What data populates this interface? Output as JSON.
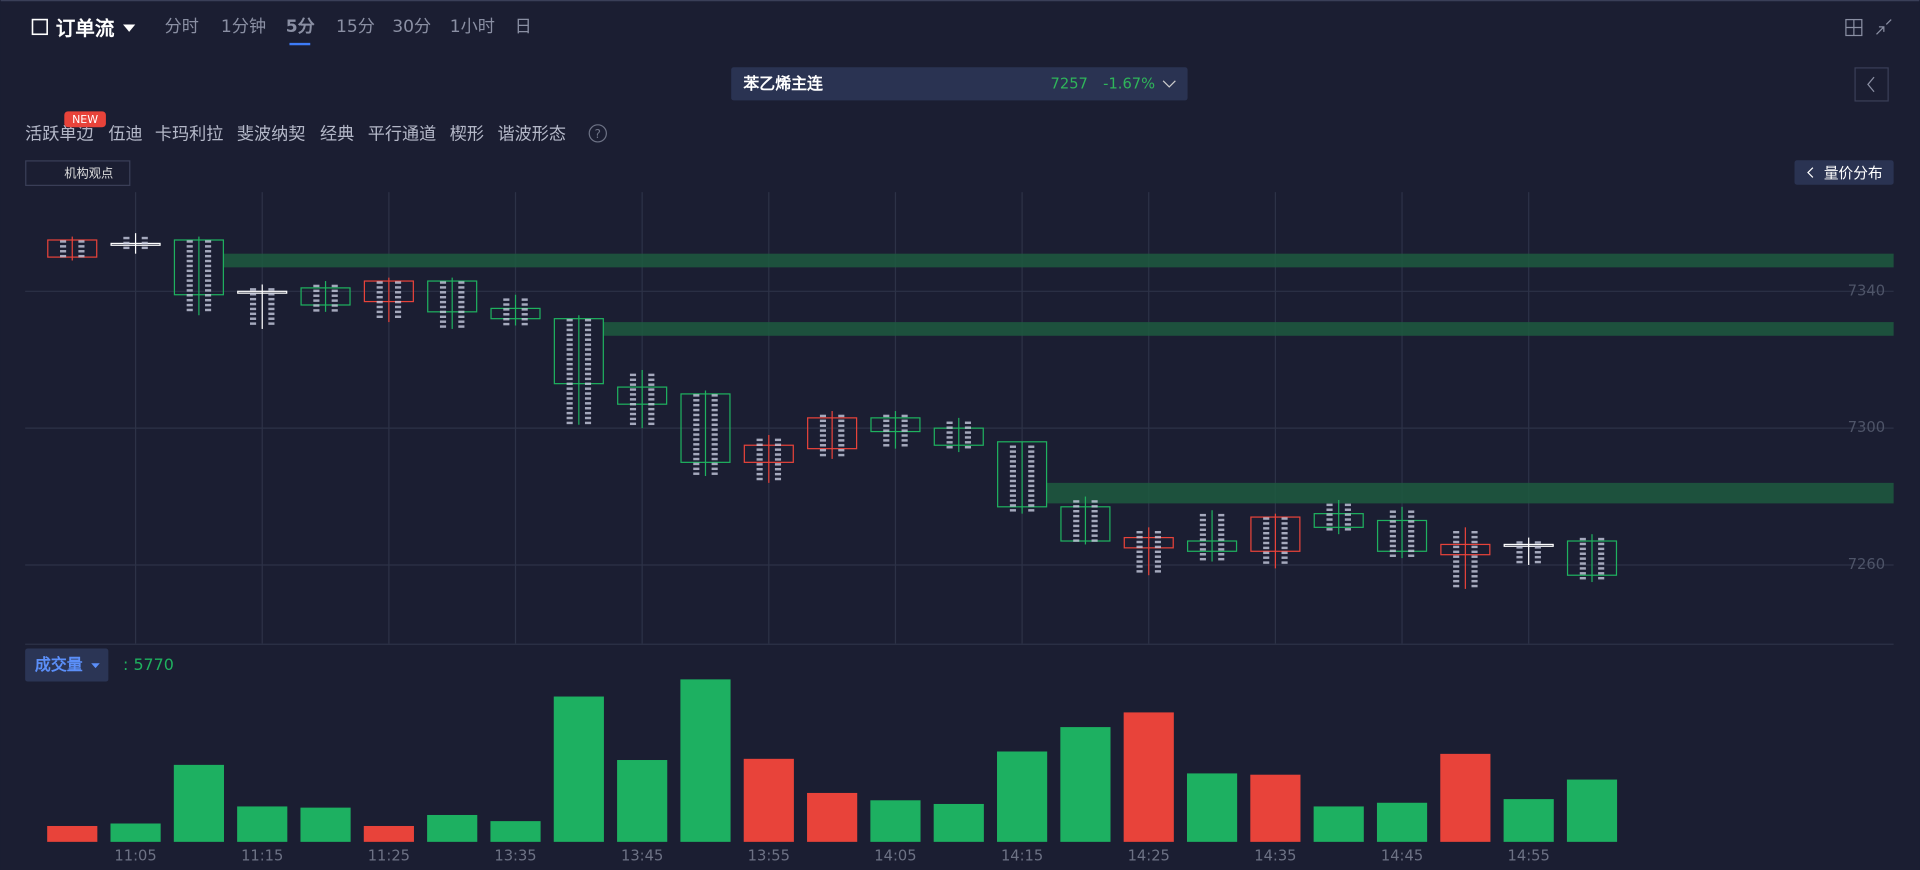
{
  "header": {
    "title": "订单流",
    "timeframes": [
      "分时",
      "1分钟",
      "5分",
      "15分",
      "30分",
      "1小时",
      "日"
    ],
    "active_timeframe": 2
  },
  "symbol": {
    "name": "苯乙烯主连",
    "price": 7257,
    "change": "-1.67%"
  },
  "toolbar": {
    "tools": [
      "活跃单边",
      "伍迪",
      "卡玛利拉",
      "斐波纳契",
      "经典",
      "平行通道",
      "楔形",
      "谐波形态"
    ],
    "badge": "NEW",
    "opinion": "机构观点",
    "distribution": "量价分布"
  },
  "chart_data": [
    {
      "type": "candlestick",
      "categories": [
        null,
        "11:05",
        null,
        "11:15",
        null,
        "11:25",
        null,
        "13:35",
        null,
        "13:45",
        null,
        "13:55",
        null,
        "14:05",
        null,
        "14:15",
        null,
        "14:25",
        null,
        "14:35",
        null,
        "14:45",
        null,
        "14:55",
        null
      ],
      "open": [
        7350,
        7354,
        7355,
        7340,
        7341,
        7337,
        7343,
        7335,
        7332,
        7312,
        7310,
        7290,
        7294,
        7303,
        7300,
        7296,
        7277,
        7265,
        7267,
        7264,
        7275,
        7273,
        7263,
        7266,
        7267
      ],
      "high": [
        7356,
        7357,
        7356,
        7342,
        7343,
        7344,
        7344,
        7339,
        7333,
        7317,
        7311,
        7298,
        7305,
        7305,
        7303,
        7296,
        7280,
        7271,
        7276,
        7275,
        7279,
        7277,
        7271,
        7268,
        7269
      ],
      "low": [
        7349,
        7351,
        7333,
        7329,
        7334,
        7331,
        7329,
        7330,
        7301,
        7300,
        7286,
        7284,
        7291,
        7294,
        7293,
        7275,
        7266,
        7257,
        7261,
        7259,
        7269,
        7262,
        7253,
        7260,
        7255
      ],
      "close": [
        7355,
        7354,
        7339,
        7340,
        7336,
        7343,
        7334,
        7332,
        7313,
        7307,
        7290,
        7295,
        7303,
        7299,
        7295,
        7277,
        7267,
        7268,
        7264,
        7274,
        7271,
        7264,
        7266,
        7266,
        7257
      ],
      "zones": [
        {
          "start": 2,
          "from": 7347,
          "to": 7351
        },
        {
          "start": 8,
          "from": 7327,
          "to": 7331
        },
        {
          "start": 15,
          "from": 7278,
          "to": 7284
        }
      ],
      "up_color": "#e8433a",
      "down_color": "#1fb15f",
      "doji_color": "#ffffff",
      "zone_color": "#1d5a40",
      "ylim": [
        7237,
        7369
      ],
      "yticks": [
        7260,
        7300,
        7340
      ],
      "grid": true
    },
    {
      "type": "bar",
      "title": "成交量",
      "values": [
        1470,
        1700,
        7130,
        3280,
        3170,
        1470,
        2490,
        1920,
        13460,
        7580,
        15050,
        7690,
        4530,
        3850,
        3510,
        8370,
        10630,
        11990,
        6340,
        6220,
        3280,
        3620,
        8150,
        3960,
        5770
      ],
      "value_labels": [
        null,
        null,
        null,
        null,
        null,
        null,
        null,
        null,
        null,
        null,
        null,
        null,
        null,
        null,
        null,
        null,
        null,
        null,
        null,
        null,
        null,
        null,
        null,
        null,
        ": 5770"
      ],
      "ylim": [
        0,
        17000
      ]
    }
  ]
}
